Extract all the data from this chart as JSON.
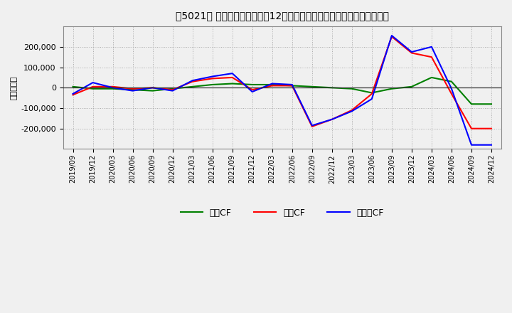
{
  "title": "［5021］ キャッシュフローの12か月移動合計の対前年同期増減額の推移",
  "ylabel": "（百万円）",
  "x_labels": [
    "2019/09",
    "2019/12",
    "2020/03",
    "2020/06",
    "2020/09",
    "2020/12",
    "2021/03",
    "2021/06",
    "2021/09",
    "2021/12",
    "2022/03",
    "2022/06",
    "2022/09",
    "2022/12",
    "2023/03",
    "2023/06",
    "2023/09",
    "2023/12",
    "2024/03",
    "2024/06",
    "2024/09",
    "2024/12"
  ],
  "operating_cf": [
    -35000,
    5000,
    5000,
    -5000,
    0,
    -10000,
    30000,
    45000,
    50000,
    -10000,
    10000,
    10000,
    -190000,
    -155000,
    -110000,
    -30000,
    250000,
    170000,
    150000,
    -30000,
    -200000,
    -200000
  ],
  "investing_cf": [
    5000,
    -5000,
    -5000,
    -10000,
    -15000,
    -5000,
    5000,
    15000,
    20000,
    15000,
    15000,
    10000,
    5000,
    0,
    -5000,
    -25000,
    -5000,
    5000,
    50000,
    30000,
    -80000,
    -80000
  ],
  "free_cf": [
    -30000,
    25000,
    0,
    -15000,
    0,
    -15000,
    35000,
    55000,
    70000,
    -20000,
    20000,
    15000,
    -185000,
    -155000,
    -115000,
    -55000,
    255000,
    175000,
    200000,
    -5000,
    -280000,
    -280000
  ],
  "operating_color": "#ff0000",
  "investing_color": "#008000",
  "free_color": "#0000ff",
  "background_color": "#f0f0f0",
  "grid_color": "#aaaaaa",
  "ylim": [
    -300000,
    300000
  ],
  "yticks": [
    -200000,
    -100000,
    0,
    100000,
    200000
  ],
  "legend_labels": [
    "営業CF",
    "投資CF",
    "フリーCF"
  ]
}
